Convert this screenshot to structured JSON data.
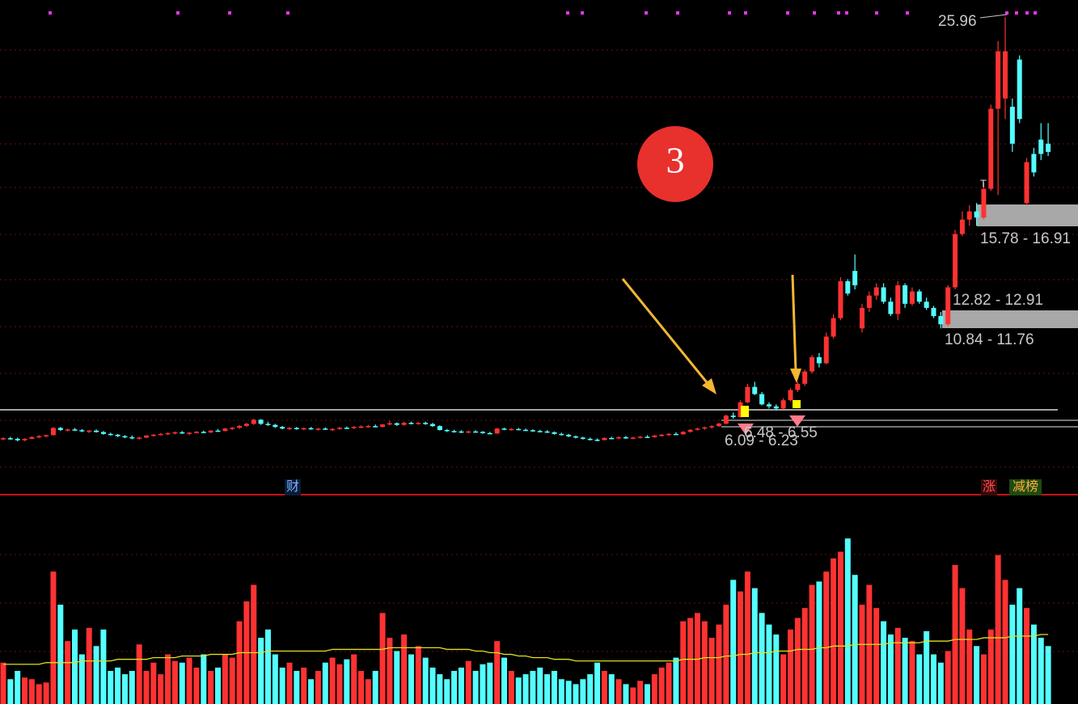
{
  "chart_data": {
    "type": "candlestick",
    "badge": "3",
    "annotations": {
      "high": "25.96",
      "zone1": "15.78 - 16.91",
      "zone2": "12.82 - 12.91",
      "zone3": "10.84 - 11.76",
      "zone4": "6.09 - 6.23",
      "zone5": "6.48 - 6.55",
      "t_mark": "T"
    },
    "markers": {
      "cai": "财",
      "zhang": "涨",
      "jianbang": "减榜"
    },
    "ylim": [
      2.7,
      26.8
    ],
    "vlim": [
      0,
      125
    ],
    "up_color": "#ff3232",
    "down_color": "#54ffff",
    "ma_color": "#e0e020",
    "candles": [
      [
        5.4,
        5.5,
        5.35,
        5.45
      ],
      [
        5.45,
        5.52,
        5.38,
        5.42
      ],
      [
        5.42,
        5.48,
        5.3,
        5.35
      ],
      [
        5.35,
        5.45,
        5.3,
        5.42
      ],
      [
        5.42,
        5.55,
        5.4,
        5.5
      ],
      [
        5.5,
        5.6,
        5.45,
        5.55
      ],
      [
        5.55,
        5.62,
        5.48,
        5.6
      ],
      [
        5.6,
        6.0,
        5.58,
        5.95
      ],
      [
        5.95,
        6.0,
        5.8,
        5.85
      ],
      [
        5.85,
        5.92,
        5.78,
        5.88
      ],
      [
        5.88,
        5.95,
        5.8,
        5.84
      ],
      [
        5.84,
        5.9,
        5.75,
        5.78
      ],
      [
        5.78,
        5.85,
        5.7,
        5.82
      ],
      [
        5.82,
        5.88,
        5.72,
        5.75
      ],
      [
        5.75,
        5.8,
        5.62,
        5.66
      ],
      [
        5.66,
        5.72,
        5.58,
        5.62
      ],
      [
        5.62,
        5.66,
        5.5,
        5.55
      ],
      [
        5.55,
        5.6,
        5.45,
        5.5
      ],
      [
        5.5,
        5.58,
        5.4,
        5.44
      ],
      [
        5.44,
        5.52,
        5.38,
        5.48
      ],
      [
        5.48,
        5.6,
        5.45,
        5.58
      ],
      [
        5.58,
        5.65,
        5.52,
        5.62
      ],
      [
        5.62,
        5.7,
        5.58,
        5.66
      ],
      [
        5.66,
        5.74,
        5.6,
        5.7
      ],
      [
        5.7,
        5.78,
        5.64,
        5.74
      ],
      [
        5.74,
        5.8,
        5.66,
        5.69
      ],
      [
        5.69,
        5.75,
        5.6,
        5.72
      ],
      [
        5.72,
        5.8,
        5.68,
        5.76
      ],
      [
        5.76,
        5.82,
        5.7,
        5.73
      ],
      [
        5.73,
        5.85,
        5.7,
        5.82
      ],
      [
        5.82,
        5.9,
        5.76,
        5.8
      ],
      [
        5.8,
        5.95,
        5.78,
        5.92
      ],
      [
        5.92,
        6.0,
        5.85,
        5.96
      ],
      [
        5.96,
        6.1,
        5.9,
        6.05
      ],
      [
        6.05,
        6.2,
        6.0,
        6.15
      ],
      [
        6.15,
        6.4,
        6.1,
        6.35
      ],
      [
        6.35,
        6.38,
        6.1,
        6.15
      ],
      [
        6.15,
        6.25,
        6.05,
        6.1
      ],
      [
        6.1,
        6.15,
        5.95,
        6.0
      ],
      [
        6.0,
        6.05,
        5.88,
        5.92
      ],
      [
        5.92,
        6.0,
        5.85,
        5.95
      ],
      [
        5.95,
        6.0,
        5.86,
        5.9
      ],
      [
        5.9,
        5.98,
        5.84,
        5.94
      ],
      [
        5.94,
        6.0,
        5.86,
        5.88
      ],
      [
        5.88,
        5.95,
        5.82,
        5.92
      ],
      [
        5.92,
        5.98,
        5.85,
        5.88
      ],
      [
        5.88,
        5.94,
        5.8,
        5.9
      ],
      [
        5.9,
        6.0,
        5.86,
        5.96
      ],
      [
        5.96,
        6.02,
        5.9,
        5.94
      ],
      [
        5.94,
        6.05,
        5.9,
        6.0
      ],
      [
        6.0,
        6.08,
        5.94,
        6.02
      ],
      [
        6.02,
        6.1,
        5.96,
        6.04
      ],
      [
        6.04,
        6.12,
        5.98,
        6.0
      ],
      [
        6.0,
        6.15,
        5.98,
        6.12
      ],
      [
        6.12,
        6.3,
        6.08,
        6.18
      ],
      [
        6.18,
        6.22,
        6.05,
        6.1
      ],
      [
        6.1,
        6.25,
        6.06,
        6.2
      ],
      [
        6.2,
        6.26,
        6.12,
        6.16
      ],
      [
        6.16,
        6.24,
        6.1,
        6.2
      ],
      [
        6.2,
        6.26,
        6.1,
        6.14
      ],
      [
        6.14,
        6.2,
        6.0,
        6.04
      ],
      [
        6.04,
        6.08,
        5.82,
        5.85
      ],
      [
        5.85,
        5.9,
        5.75,
        5.8
      ],
      [
        5.8,
        5.86,
        5.72,
        5.78
      ],
      [
        5.78,
        5.84,
        5.7,
        5.74
      ],
      [
        5.74,
        5.82,
        5.68,
        5.78
      ],
      [
        5.78,
        5.84,
        5.72,
        5.76
      ],
      [
        5.76,
        5.8,
        5.66,
        5.7
      ],
      [
        5.7,
        5.76,
        5.64,
        5.68
      ],
      [
        5.68,
        5.95,
        5.66,
        5.92
      ],
      [
        5.92,
        5.96,
        5.84,
        5.88
      ],
      [
        5.88,
        5.94,
        5.82,
        5.9
      ],
      [
        5.9,
        5.95,
        5.84,
        5.86
      ],
      [
        5.86,
        5.92,
        5.8,
        5.84
      ],
      [
        5.84,
        5.88,
        5.76,
        5.8
      ],
      [
        5.8,
        5.86,
        5.74,
        5.78
      ],
      [
        5.78,
        5.84,
        5.7,
        5.74
      ],
      [
        5.74,
        5.78,
        5.62,
        5.66
      ],
      [
        5.66,
        5.72,
        5.58,
        5.62
      ],
      [
        5.62,
        5.66,
        5.5,
        5.54
      ],
      [
        5.54,
        5.58,
        5.44,
        5.48
      ],
      [
        5.48,
        5.52,
        5.38,
        5.42
      ],
      [
        5.42,
        5.48,
        5.34,
        5.38
      ],
      [
        5.38,
        5.44,
        5.3,
        5.36
      ],
      [
        5.36,
        5.5,
        5.34,
        5.46
      ],
      [
        5.46,
        5.52,
        5.4,
        5.44
      ],
      [
        5.44,
        5.54,
        5.4,
        5.5
      ],
      [
        5.5,
        5.56,
        5.42,
        5.46
      ],
      [
        5.46,
        5.52,
        5.4,
        5.48
      ],
      [
        5.48,
        5.56,
        5.44,
        5.52
      ],
      [
        5.52,
        5.6,
        5.46,
        5.5
      ],
      [
        5.5,
        5.62,
        5.48,
        5.58
      ],
      [
        5.58,
        5.66,
        5.52,
        5.62
      ],
      [
        5.62,
        5.7,
        5.56,
        5.66
      ],
      [
        5.66,
        5.74,
        5.6,
        5.64
      ],
      [
        5.64,
        5.8,
        5.62,
        5.76
      ],
      [
        5.76,
        5.9,
        5.72,
        5.86
      ],
      [
        5.86,
        5.96,
        5.82,
        5.92
      ],
      [
        5.92,
        6.02,
        5.86,
        5.98
      ],
      [
        5.98,
        6.08,
        5.92,
        6.04
      ],
      [
        6.04,
        6.2,
        6.0,
        6.16
      ],
      [
        6.16,
        6.6,
        6.12,
        6.55
      ],
      [
        6.55,
        6.7,
        6.4,
        6.48
      ],
      [
        6.48,
        7.3,
        6.45,
        7.2
      ],
      [
        7.2,
        8.1,
        7.15,
        7.95
      ],
      [
        7.95,
        8.2,
        7.55,
        7.6
      ],
      [
        7.6,
        7.7,
        7.05,
        7.1
      ],
      [
        7.1,
        7.2,
        6.9,
        7.0
      ],
      [
        7.0,
        7.1,
        6.8,
        6.9
      ],
      [
        6.9,
        7.4,
        6.85,
        7.3
      ],
      [
        7.3,
        7.9,
        7.25,
        7.8
      ],
      [
        7.8,
        8.2,
        7.7,
        8.1
      ],
      [
        8.1,
        8.8,
        8.0,
        8.7
      ],
      [
        8.7,
        9.5,
        8.6,
        9.4
      ],
      [
        9.4,
        9.6,
        8.9,
        9.1
      ],
      [
        9.1,
        10.6,
        9.05,
        10.4
      ],
      [
        10.4,
        11.5,
        10.3,
        11.3
      ],
      [
        11.3,
        13.3,
        11.2,
        13.1
      ],
      [
        13.1,
        13.2,
        12.4,
        12.5
      ],
      [
        13.6,
        14.4,
        12.7,
        12.9
      ],
      [
        10.8,
        12.0,
        10.6,
        11.8
      ],
      [
        11.8,
        12.6,
        11.6,
        12.4
      ],
      [
        12.4,
        13.0,
        12.2,
        12.8
      ],
      [
        12.8,
        13.0,
        12.0,
        12.1
      ],
      [
        12.1,
        12.3,
        11.4,
        11.5
      ],
      [
        11.5,
        13.1,
        11.2,
        12.9
      ],
      [
        12.9,
        13.0,
        11.8,
        12.0
      ],
      [
        12.0,
        12.8,
        11.9,
        12.6
      ],
      [
        12.6,
        12.7,
        12.0,
        12.1
      ],
      [
        12.1,
        12.3,
        11.7,
        11.8
      ],
      [
        11.8,
        11.9,
        11.3,
        11.4
      ],
      [
        11.4,
        11.6,
        10.8,
        11.0
      ],
      [
        11.0,
        12.9,
        10.9,
        12.8
      ],
      [
        12.8,
        15.6,
        12.7,
        15.4
      ],
      [
        15.4,
        16.5,
        15.3,
        16.1
      ],
      [
        16.1,
        16.8,
        15.8,
        16.5
      ],
      [
        16.5,
        16.91,
        15.8,
        16.2
      ],
      [
        16.2,
        17.9,
        16.1,
        17.6
      ],
      [
        17.6,
        21.7,
        17.5,
        21.5
      ],
      [
        21.5,
        24.8,
        17.3,
        24.3
      ],
      [
        22.0,
        25.96,
        21.0,
        24.3
      ],
      [
        21.6,
        22.0,
        19.4,
        19.8
      ],
      [
        23.9,
        24.1,
        20.8,
        21.0
      ],
      [
        16.9,
        19.1,
        16.8,
        18.9
      ],
      [
        19.3,
        19.6,
        18.2,
        18.4
      ],
      [
        20.0,
        20.8,
        19.0,
        19.3
      ],
      [
        19.8,
        20.8,
        19.2,
        19.4
      ]
    ],
    "volume": [
      25,
      15,
      20,
      16,
      15,
      12,
      13,
      80,
      60,
      38,
      45,
      30,
      46,
      35,
      45,
      20,
      22,
      18,
      20,
      36,
      20,
      25,
      18,
      30,
      26,
      25,
      28,
      22,
      30,
      20,
      22,
      30,
      28,
      50,
      62,
      72,
      40,
      45,
      30,
      22,
      25,
      20,
      22,
      15,
      20,
      25,
      28,
      24,
      27,
      30,
      20,
      15,
      20,
      55,
      40,
      32,
      42,
      30,
      35,
      28,
      22,
      18,
      15,
      20,
      22,
      26,
      20,
      24,
      25,
      38,
      28,
      20,
      16,
      18,
      20,
      22,
      18,
      20,
      15,
      14,
      12,
      15,
      18,
      25,
      20,
      18,
      15,
      12,
      10,
      14,
      12,
      18,
      22,
      25,
      28,
      50,
      52,
      55,
      50,
      40,
      48,
      60,
      75,
      68,
      80,
      70,
      55,
      48,
      42,
      30,
      45,
      52,
      58,
      72,
      74,
      80,
      88,
      92,
      100,
      78,
      60,
      72,
      58,
      50,
      42,
      46,
      40,
      38,
      30,
      44,
      30,
      25,
      32,
      84,
      70,
      45,
      35,
      30,
      45,
      90,
      75,
      60,
      70,
      58,
      48,
      40,
      35
    ],
    "volume_ma": [
      24,
      24,
      24,
      24,
      24,
      24,
      25,
      25,
      25,
      25,
      25,
      26,
      26,
      26,
      26,
      26,
      27,
      27,
      27,
      27,
      27,
      28,
      28,
      28,
      28,
      29,
      29,
      29,
      29,
      30,
      30,
      30,
      30,
      31,
      31,
      31,
      31,
      32,
      32,
      32,
      32,
      32,
      32,
      32,
      32,
      32,
      33,
      33,
      33,
      33,
      33,
      33,
      33,
      33,
      34,
      34,
      34,
      34,
      34,
      34,
      34,
      34,
      33,
      33,
      33,
      33,
      32,
      32,
      31,
      31,
      30,
      30,
      29,
      29,
      28,
      28,
      28,
      27,
      27,
      27,
      26,
      26,
      26,
      26,
      26,
      26,
      26,
      26,
      26,
      26,
      26,
      26,
      26,
      26,
      26,
      27,
      27,
      27,
      28,
      28,
      28,
      29,
      29,
      30,
      30,
      31,
      31,
      31,
      32,
      32,
      32,
      33,
      33,
      33,
      34,
      34,
      35,
      35,
      35,
      36,
      36,
      36,
      36,
      36,
      37,
      37,
      37,
      37,
      37,
      38,
      38,
      38,
      38,
      39,
      39,
      39,
      39,
      40,
      40,
      40,
      40,
      41,
      41,
      41,
      41,
      42,
      42
    ]
  }
}
